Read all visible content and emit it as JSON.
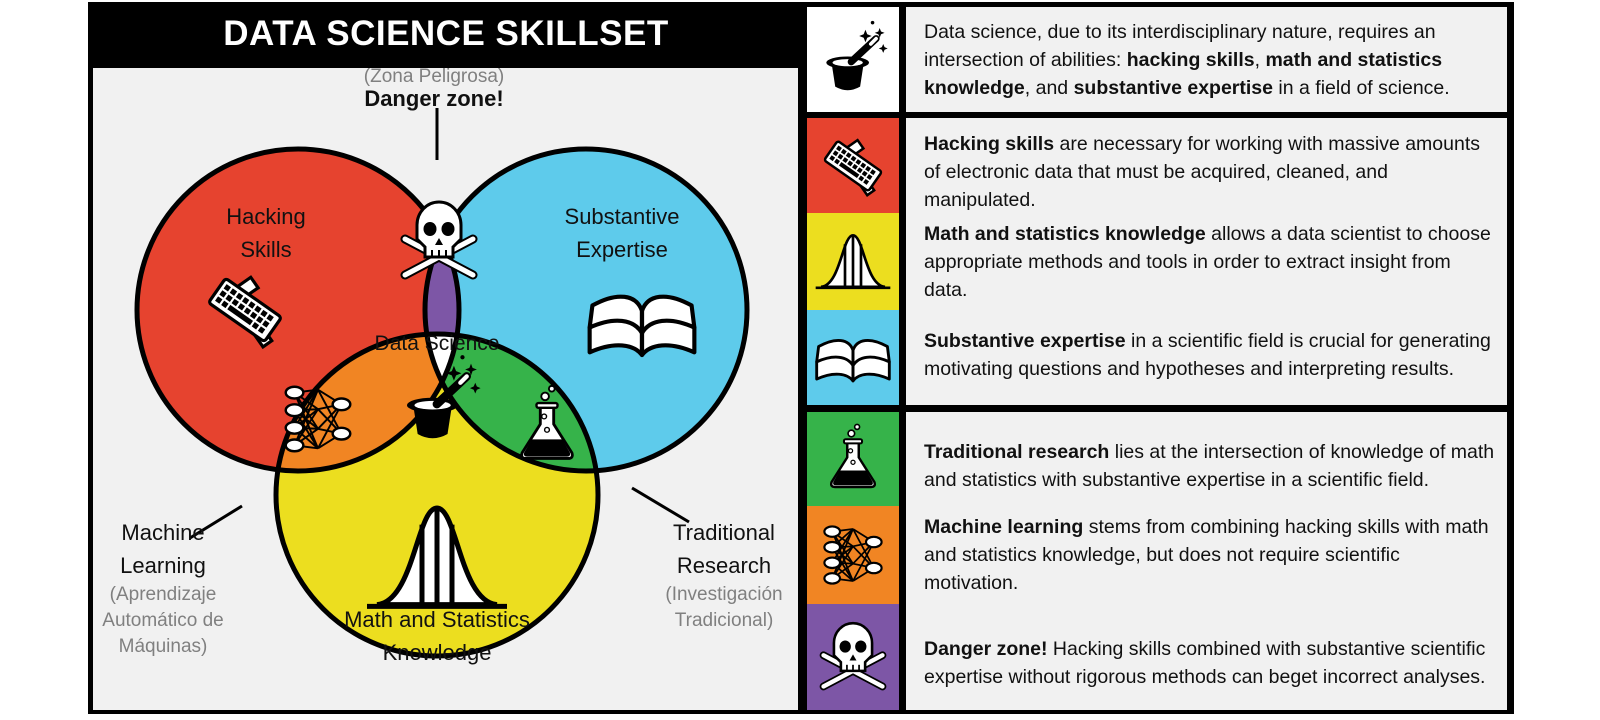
{
  "title": "DATA SCIENCE SKILLSET",
  "colors": {
    "hacking": "#e6432f",
    "substantive": "#5ecbeb",
    "math": "#ecde1f",
    "danger": "#7d56a6",
    "machine_learning": "#f18523",
    "traditional": "#36b34a",
    "core": "#ffffff",
    "panel": "#f1f1f1",
    "frame": "#000000"
  },
  "venn": {
    "danger_zone_es": "(Zona Peligrosa)",
    "danger_zone": "Danger zone!",
    "hacking": [
      "Hacking",
      "Skills"
    ],
    "substantive": [
      "Substantive",
      "Expertise"
    ],
    "data_science": "Data Science",
    "math": [
      "Math and Statistics",
      "Knowledge"
    ],
    "machine_learning": [
      "Machine",
      "Learning"
    ],
    "machine_learning_es": [
      "(Aprendizaje",
      "Automático de",
      "Máquinas)"
    ],
    "traditional": [
      "Traditional",
      "Research"
    ],
    "traditional_es": [
      "(Investigación",
      "Tradicional)"
    ]
  },
  "descriptions": {
    "intro": {
      "icon": "magic-hat-icon",
      "t1": "Data science, due to its interdisciplinary nature, requires an intersection of abilities: ",
      "b1": "hacking skills",
      "t2": ", ",
      "b2": "math and statistics knowledge",
      "t3": ", and ",
      "b3": "substantive expertise",
      "t4": " in a field of science."
    },
    "hacking": {
      "icon": "keyboard-hammer-icon",
      "bold": "Hacking skills",
      "text": " are necessary for working with massive amounts of electronic data that must be acquired, cleaned, and manipulated."
    },
    "math": {
      "icon": "bell-curve-icon",
      "bold": "Math and statistics knowledge",
      "text": " allows a data scientist to choose appropriate methods and tools in order to extract insight from data."
    },
    "substantive": {
      "icon": "open-book-icon",
      "bold": "Substantive expertise",
      "text": " in a scientific field is crucial for generating motivating questions and hypotheses and interpreting results."
    },
    "traditional": {
      "icon": "flask-icon",
      "bold": "Traditional research",
      "text": " lies at the intersection of knowledge of math and statistics with substantive expertise in a scientific field."
    },
    "machine_learning": {
      "icon": "neural-network-icon",
      "bold": "Machine learning",
      "text": " stems from combining hacking skills with math and statistics knowledge, but does not require scientific motivation."
    },
    "danger": {
      "icon": "skull-crossbones-icon",
      "bold": "Danger zone!",
      "text": " Hacking skills combined with substantive scientific expertise without rigorous methods can beget incorrect analyses."
    }
  }
}
